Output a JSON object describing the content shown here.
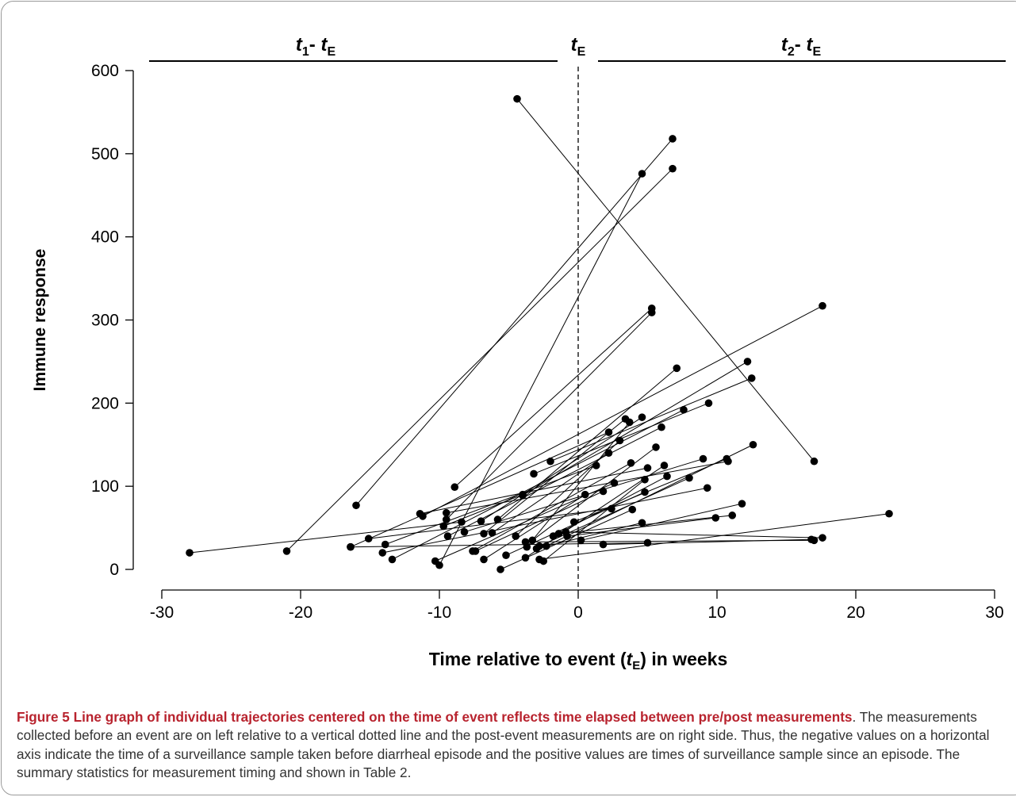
{
  "figure": {
    "caption_title": "Figure 5 Line graph of individual trajectories centered on the time of event reflects time elapsed between pre/post measurements",
    "caption_body": ". The measurements collected before an event are on left relative to a vertical dotted line and the post-event measurements are on right side. Thus, the negative values on a horizontal axis indicate the time of a surveillance sample taken before diarrheal episode and the positive values are times of surveillance sample since an episode. The summary statistics for measurement timing and shown in Table 2."
  },
  "chart_data": {
    "type": "line",
    "title": "",
    "xlabel_main": "Time relative to event (",
    "xlabel_var": "t",
    "xlabel_sub": "E",
    "xlabel_tail": ") in weeks",
    "ylabel": "Immune response",
    "xlim": [
      -30,
      30
    ],
    "ylim": [
      0,
      600
    ],
    "xticks": [
      "-30",
      "-20",
      "-10",
      "0",
      "10",
      "20",
      "30"
    ],
    "yticks": [
      "0",
      "100",
      "200",
      "300",
      "400",
      "500",
      "600"
    ],
    "event_line_x": 0,
    "segment_labels": {
      "left": {
        "t": "t",
        "s1": "1",
        "dash": "- ",
        "t2": "t",
        "s2": "E"
      },
      "center": {
        "t": "t",
        "s": "E"
      },
      "right": {
        "t": "t",
        "s1": "2",
        "dash": "- ",
        "t2": "t",
        "s2": "E"
      }
    },
    "trajectories": [
      [
        [
          -4.4,
          566
        ],
        [
          17.0,
          130
        ]
      ],
      [
        [
          -21.0,
          22
        ],
        [
          6.8,
          482
        ]
      ],
      [
        [
          -28.0,
          20
        ],
        [
          -8.4,
          57
        ]
      ],
      [
        [
          -16.0,
          77
        ],
        [
          6.8,
          518
        ]
      ],
      [
        [
          -10.0,
          5
        ],
        [
          4.6,
          476
        ]
      ],
      [
        [
          -8.9,
          99
        ],
        [
          5.3,
          314
        ]
      ],
      [
        [
          -9.5,
          60
        ],
        [
          5.3,
          309
        ]
      ],
      [
        [
          -11.2,
          64
        ],
        [
          17.6,
          317
        ]
      ],
      [
        [
          -4.0,
          89
        ],
        [
          12.2,
          250
        ]
      ],
      [
        [
          -2.0,
          130
        ],
        [
          12.5,
          230
        ]
      ],
      [
        [
          -5.8,
          60
        ],
        [
          7.1,
          242
        ]
      ],
      [
        [
          -3.2,
          115
        ],
        [
          9.4,
          200
        ]
      ],
      [
        [
          -7.0,
          58
        ],
        [
          4.6,
          183
        ]
      ],
      [
        [
          -6.8,
          43
        ],
        [
          3.4,
          181
        ]
      ],
      [
        [
          -3.7,
          27
        ],
        [
          3.7,
          177
        ]
      ],
      [
        [
          -13.4,
          12
        ],
        [
          7.6,
          192
        ]
      ],
      [
        [
          -9.4,
          40
        ],
        [
          6.0,
          171
        ]
      ],
      [
        [
          -16.4,
          27
        ],
        [
          2.2,
          165
        ]
      ],
      [
        [
          -6.2,
          44
        ],
        [
          2.2,
          140
        ]
      ],
      [
        [
          -3.8,
          14
        ],
        [
          6.2,
          125
        ]
      ],
      [
        [
          -2.8,
          28
        ],
        [
          8.0,
          110
        ]
      ],
      [
        [
          -2.5,
          10
        ],
        [
          4.8,
          108
        ]
      ],
      [
        [
          -3.3,
          35
        ],
        [
          5.6,
          147
        ]
      ],
      [
        [
          -4.5,
          40
        ],
        [
          3.0,
          155
        ]
      ],
      [
        [
          -1.8,
          40
        ],
        [
          6.4,
          112
        ]
      ],
      [
        [
          -13.9,
          30
        ],
        [
          1.3,
          125
        ]
      ],
      [
        [
          -9.5,
          68
        ],
        [
          10.8,
          130
        ]
      ],
      [
        [
          -2.3,
          28
        ],
        [
          12.6,
          150
        ]
      ],
      [
        [
          -10.3,
          10
        ],
        [
          2.6,
          104
        ]
      ],
      [
        [
          -5.2,
          17
        ],
        [
          4.8,
          93
        ]
      ],
      [
        [
          -7.6,
          22
        ],
        [
          3.8,
          128
        ]
      ],
      [
        [
          -14.1,
          20
        ],
        [
          9.3,
          98
        ]
      ],
      [
        [
          0.2,
          35
        ],
        [
          11.8,
          79
        ]
      ],
      [
        [
          -1.4,
          43
        ],
        [
          11.1,
          65
        ]
      ],
      [
        [
          -0.8,
          40
        ],
        [
          9.9,
          62
        ]
      ],
      [
        [
          -15.1,
          37
        ],
        [
          2.4,
          73
        ]
      ],
      [
        [
          -5.6,
          0
        ],
        [
          3.9,
          72
        ]
      ],
      [
        [
          -6.8,
          12
        ],
        [
          0.5,
          90
        ]
      ],
      [
        [
          -7.4,
          22
        ],
        [
          1.8,
          94
        ]
      ],
      [
        [
          -9.7,
          52
        ],
        [
          -4.0,
          90
        ]
      ],
      [
        [
          -2.8,
          12
        ],
        [
          22.4,
          67
        ]
      ],
      [
        [
          -0.3,
          57
        ],
        [
          10.7,
          133
        ]
      ],
      [
        [
          -16.4,
          27
        ],
        [
          5.0,
          32
        ]
      ],
      [
        [
          -3.8,
          33
        ],
        [
          17.0,
          35
        ]
      ],
      [
        [
          -0.9,
          45
        ],
        [
          17.6,
          38
        ]
      ],
      [
        [
          1.8,
          30
        ],
        [
          16.8,
          36
        ]
      ],
      [
        [
          -3.0,
          25
        ],
        [
          4.6,
          56
        ]
      ],
      [
        [
          -8.2,
          45
        ],
        [
          9.0,
          133
        ]
      ],
      [
        [
          -11.4,
          67
        ],
        [
          5.0,
          122
        ]
      ]
    ]
  }
}
